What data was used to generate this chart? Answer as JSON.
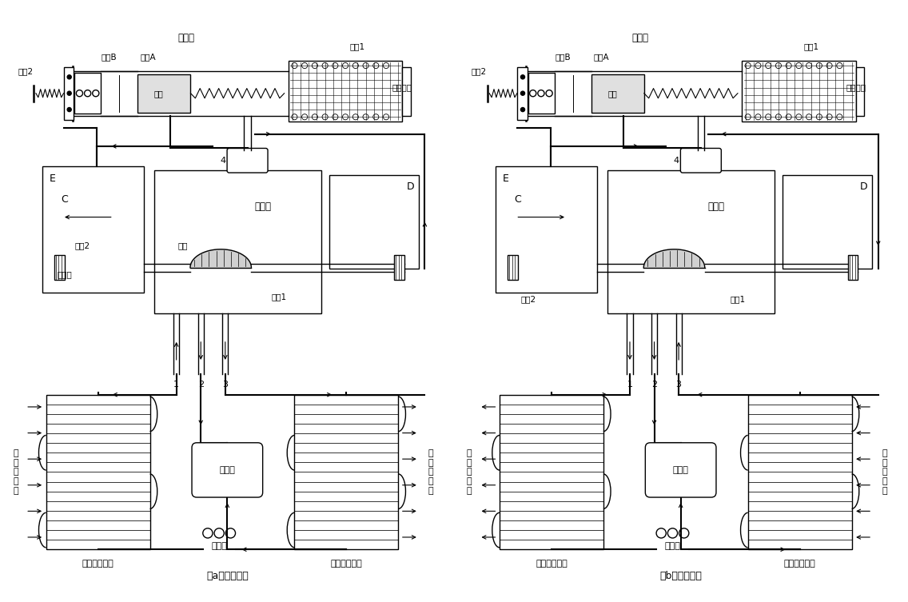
{
  "background_color": "#ffffff",
  "line_color": "#000000",
  "fig_width": 11.36,
  "fig_height": 7.53,
  "caption_a": "（a）制冷状态",
  "caption_b": "（b）制热状态",
  "labels": {
    "dianci_fa": "电磁阀",
    "fa_xin_B": "阀芯B",
    "fa_xin_A": "阀芯A",
    "tan_huang_1": "弹簧1",
    "tan_huang_2": "弹簧2",
    "heng_tie": "衔铁",
    "dianciXQ": "电磁线圈",
    "C": "C",
    "D": "D",
    "E": "E",
    "four_way": "四通阀",
    "huo_sai_1": "活塞1",
    "huo_sai_2": "活塞2",
    "hua_kuai": "滑块",
    "pai_qi_kong": "排气孔",
    "compressor": "压缩机",
    "indoor_HX": "室内热交换器",
    "outdoor_HX": "室外热交换器",
    "mao_xi_guan": "毛细管",
    "from_indoor_a": "从\n室\n内\n吸\n热",
    "to_outdoor_a": "向\n室\n外\n放\n热",
    "from_outdoor_b": "从\n室\n外\n吸\n热",
    "to_indoor_b": "向\n室\n内\n放\n热",
    "num_1": "1",
    "num_2": "2",
    "num_3": "3",
    "num_4": "4"
  }
}
